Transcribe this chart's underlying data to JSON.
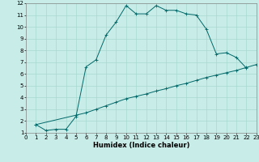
{
  "xlabel": "Humidex (Indice chaleur)",
  "bg_color": "#c8ece8",
  "grid_color": "#a8d8d0",
  "line_color": "#006868",
  "xlim": [
    0,
    23
  ],
  "ylim": [
    1,
    12
  ],
  "xticks": [
    0,
    1,
    2,
    3,
    4,
    5,
    6,
    7,
    8,
    9,
    10,
    11,
    12,
    13,
    14,
    15,
    16,
    17,
    18,
    19,
    20,
    21,
    22,
    23
  ],
  "yticks": [
    1,
    2,
    3,
    4,
    5,
    6,
    7,
    8,
    9,
    10,
    11,
    12
  ],
  "curve1_x": [
    1,
    2,
    3,
    4,
    5,
    6,
    7,
    8,
    9,
    10,
    11,
    12,
    13,
    14,
    15,
    16,
    17,
    18,
    19,
    20,
    21,
    22
  ],
  "curve1_y": [
    1.7,
    1.2,
    1.3,
    1.3,
    2.4,
    6.6,
    7.2,
    9.3,
    10.4,
    11.8,
    11.1,
    11.1,
    11.8,
    11.4,
    11.4,
    11.1,
    11.0,
    9.8,
    7.7,
    7.8,
    7.4,
    6.5
  ],
  "curve2_x": [
    1,
    5,
    6,
    7,
    8,
    9,
    10,
    11,
    12,
    13,
    14,
    15,
    16,
    17,
    18,
    19,
    20,
    21,
    22,
    23
  ],
  "curve2_y": [
    1.7,
    2.5,
    2.7,
    3.0,
    3.3,
    3.6,
    3.9,
    4.1,
    4.3,
    4.55,
    4.75,
    5.0,
    5.2,
    5.45,
    5.7,
    5.9,
    6.1,
    6.3,
    6.55,
    6.8
  ],
  "tick_fontsize": 5,
  "xlabel_fontsize": 6,
  "xlabel_fontweight": "bold"
}
